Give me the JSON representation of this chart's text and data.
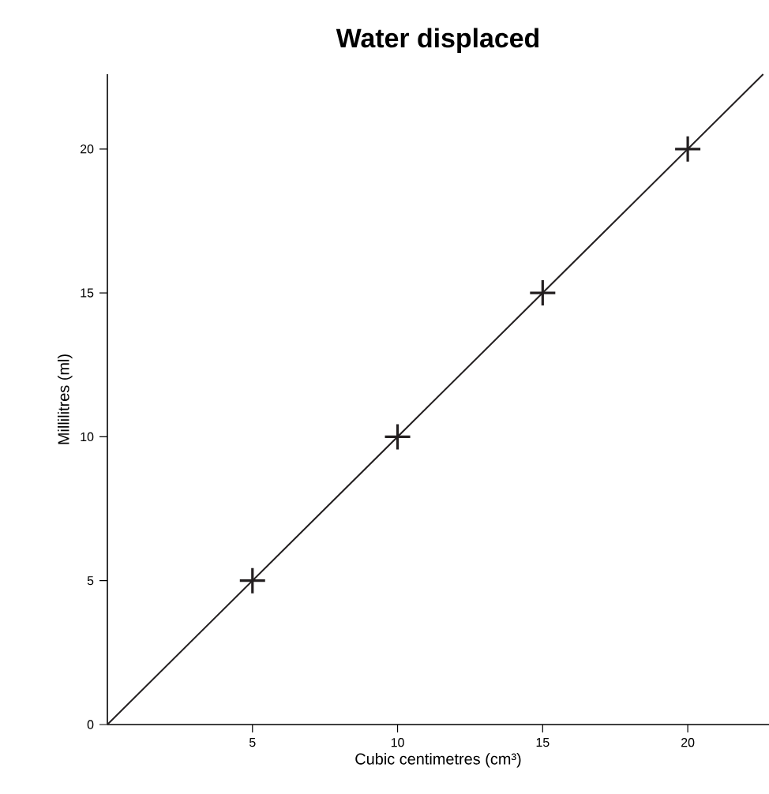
{
  "chart_data": {
    "type": "scatter",
    "title": "Water displaced",
    "xlabel": "Cubic centimetres (cm³)",
    "ylabel": "Millilitres (ml)",
    "xlim": [
      0,
      22.8
    ],
    "ylim": [
      0,
      22.6
    ],
    "xticks": [
      5,
      10,
      15,
      20
    ],
    "yticks": [
      0,
      5,
      10,
      15,
      20
    ],
    "grid": false,
    "series": [
      {
        "type": "line",
        "color": "#231f20",
        "x": [
          0,
          22.6
        ],
        "values": [
          0,
          22.6
        ],
        "marker": "none"
      },
      {
        "color": "#231f20",
        "x": [
          5,
          10,
          15,
          20
        ],
        "values": [
          5,
          10,
          15,
          20
        ],
        "marker": "cross"
      }
    ]
  }
}
